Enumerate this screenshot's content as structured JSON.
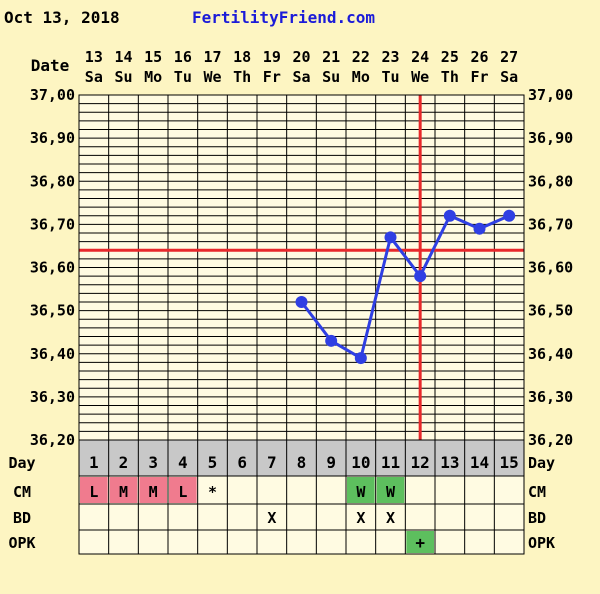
{
  "header": {
    "date": "Oct 13, 2018",
    "site": "FertilityFriend.com"
  },
  "row_labels": {
    "date": "Date",
    "day": "Day",
    "cm": "CM",
    "bd": "BD",
    "opk": "OPK"
  },
  "colors": {
    "background": "#fdf5c2",
    "grid_cell": "#fffbe2",
    "day_row": "#c8c8c8",
    "line": "#2f3fe3",
    "coverline": "#e8282b",
    "cm_pink": "#f07b8e",
    "cm_green": "#5dbf5e",
    "opk_green": "#5dbf5e"
  },
  "chart_data": {
    "type": "line",
    "y_format_decimals": 2,
    "ylim": [
      36.2,
      37.0
    ],
    "y_ticks": [
      37.0,
      36.9,
      36.8,
      36.7,
      36.6,
      36.5,
      36.4,
      36.3,
      36.2
    ],
    "dates": [
      "13",
      "14",
      "15",
      "16",
      "17",
      "18",
      "19",
      "20",
      "21",
      "22",
      "23",
      "24",
      "25",
      "26",
      "27"
    ],
    "weekdays": [
      "Sa",
      "Su",
      "Mo",
      "Tu",
      "We",
      "Th",
      "Fr",
      "Sa",
      "Su",
      "Mo",
      "Tu",
      "We",
      "Th",
      "Fr",
      "Sa"
    ],
    "cycle_days": [
      "1",
      "2",
      "3",
      "4",
      "5",
      "6",
      "7",
      "8",
      "9",
      "10",
      "11",
      "12",
      "13",
      "14",
      "15"
    ],
    "series": [
      {
        "values": [
          null,
          null,
          null,
          null,
          null,
          null,
          null,
          36.52,
          36.43,
          36.39,
          36.67,
          36.58,
          36.72,
          36.69,
          36.72
        ]
      }
    ],
    "coverline": 36.64,
    "ovulation_day_index": 11,
    "cm": [
      "L",
      "M",
      "M",
      "L",
      "*",
      "",
      "",
      "",
      "",
      "W",
      "W",
      "",
      "",
      "",
      ""
    ],
    "cm_fill": [
      "pink",
      "pink",
      "pink",
      "pink",
      "",
      "",
      "",
      "",
      "",
      "green",
      "green",
      "",
      "",
      "",
      ""
    ],
    "bd": [
      "",
      "",
      "",
      "",
      "",
      "",
      "X",
      "",
      "",
      "X",
      "X",
      "",
      "",
      "",
      ""
    ],
    "opk": [
      "",
      "",
      "",
      "",
      "",
      "",
      "",
      "",
      "",
      "",
      "",
      "+",
      "",
      "",
      ""
    ],
    "opk_fill": [
      "",
      "",
      "",
      "",
      "",
      "",
      "",
      "",
      "",
      "",
      "",
      "green",
      "",
      "",
      ""
    ]
  }
}
